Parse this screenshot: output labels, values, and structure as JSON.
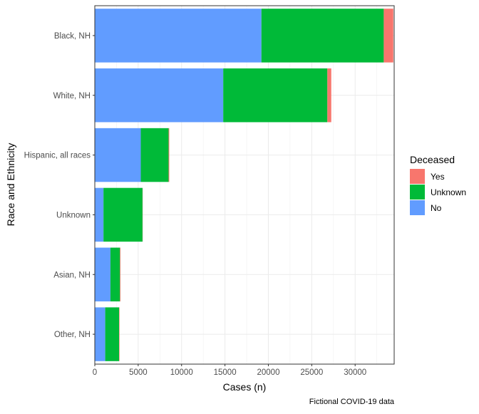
{
  "chart_data": {
    "type": "bar",
    "orientation": "horizontal",
    "stacked": true,
    "title": "",
    "xlabel": "Cases (n)",
    "ylabel": "Race and Ethnicity",
    "caption": "Fictional COVID-19 data",
    "xlim": [
      0,
      34500
    ],
    "x_ticks": [
      0,
      5000,
      10000,
      15000,
      20000,
      25000,
      30000
    ],
    "grid": true,
    "legend": {
      "title": "Deceased",
      "placement": "right",
      "entries": [
        "Yes",
        "Unknown",
        "No"
      ]
    },
    "categories": [
      "Black, NH",
      "White, NH",
      "Hispanic, all races",
      "Unknown",
      "Asian, NH",
      "Other, NH"
    ],
    "series": [
      {
        "name": "No",
        "color": "#619CFF",
        "values": [
          19200,
          14800,
          5300,
          1000,
          1800,
          1200
        ]
      },
      {
        "name": "Unknown",
        "color": "#00BA38",
        "values": [
          14100,
          12000,
          3200,
          4500,
          1100,
          1600
        ]
      },
      {
        "name": "Yes",
        "color": "#F8766D",
        "values": [
          1100,
          450,
          80,
          20,
          60,
          50
        ]
      }
    ]
  }
}
